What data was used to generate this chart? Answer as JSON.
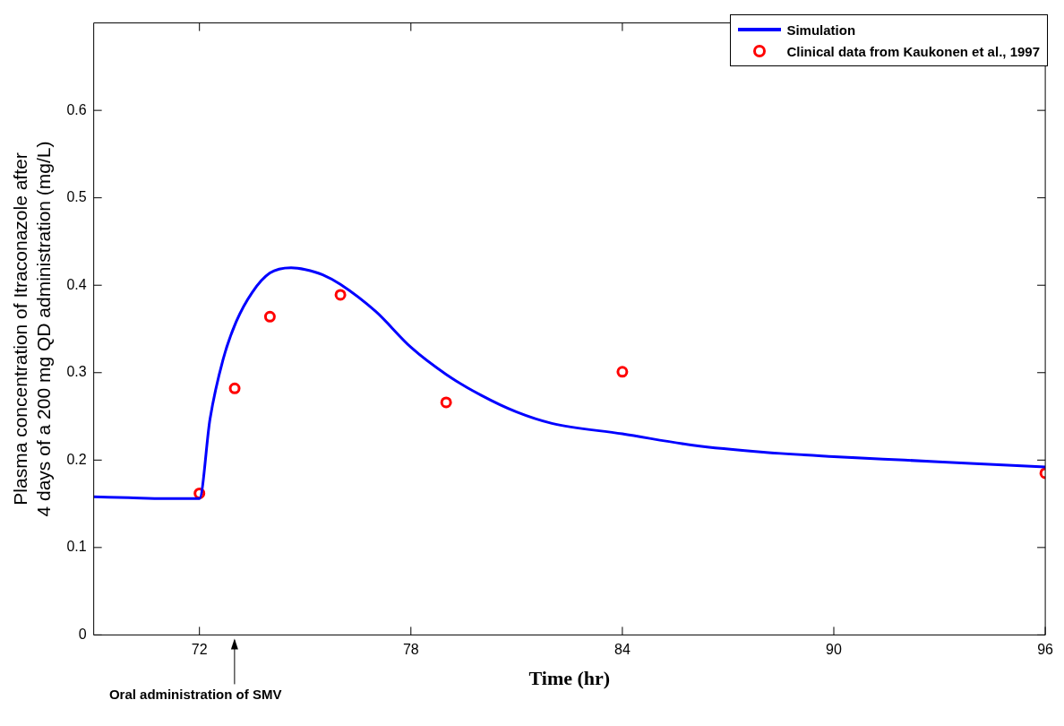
{
  "chart_data": {
    "type": "line",
    "xlabel": "Time (hr)",
    "ylabel": "Plasma concentration of Itraconazole after\n4 days of a 200 mg QD administration (mg/L)",
    "xlim": [
      69,
      96
    ],
    "xticks": [
      72,
      78,
      84,
      90,
      96
    ],
    "ylim": [
      0,
      0.7
    ],
    "yticks": [
      0,
      0.1,
      0.2,
      0.3,
      0.4,
      0.5,
      0.6
    ],
    "grid": false,
    "legend": "top right",
    "series": [
      {
        "name": "Simulation",
        "color": "#0000ff",
        "marker": "none",
        "x": [
          69,
          70,
          71,
          72,
          72.3,
          72.67,
          73.04,
          73.5,
          74,
          74.6,
          75,
          75.5,
          76,
          77,
          78,
          79,
          80,
          81,
          82,
          84,
          86,
          88,
          90,
          92,
          94,
          96
        ],
        "values": [
          0.158,
          0.157,
          0.156,
          0.156,
          0.247,
          0.315,
          0.358,
          0.392,
          0.414,
          0.42,
          0.418,
          0.412,
          0.401,
          0.37,
          0.329,
          0.298,
          0.274,
          0.255,
          0.242,
          0.23,
          0.217,
          0.209,
          0.204,
          0.2,
          0.196,
          0.192
        ]
      },
      {
        "name": "Clinical data from Kaukonen et al., 1997",
        "type": "scatter",
        "color": "#ff0000",
        "marker": "circle",
        "x": [
          72,
          73,
          74,
          76,
          79,
          84,
          96
        ],
        "values": [
          0.162,
          0.282,
          0.364,
          0.389,
          0.266,
          0.301,
          0.185
        ]
      }
    ],
    "annotations": [
      "Oral administration of SMV"
    ]
  }
}
